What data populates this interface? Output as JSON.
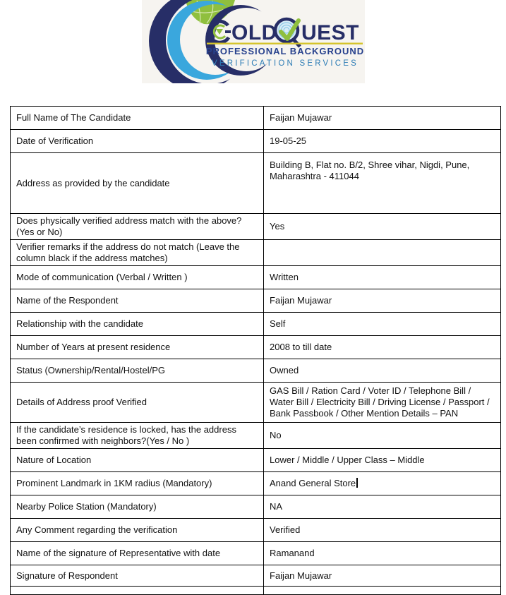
{
  "logo": {
    "title": "GOLDQUEST",
    "title_old": "OLD",
    "title_uest": "UEST",
    "subtitle_line1": "PROFESSIONAL BACKGROUND",
    "subtitle_line2": "VERIFICATION SERVICES",
    "colors": {
      "navy": "#272e67",
      "green": "#8fbf3e",
      "light_blue": "#3aa7dd",
      "yellow": "#d4c32b",
      "subtitle_navy": "#27418d",
      "subtitle_blue": "#2c7cb5",
      "background": "#f6f4f0"
    }
  },
  "table": {
    "rows": [
      {
        "label": "Full Name of The Candidate",
        "value": "Faijan Mujawar"
      },
      {
        "label": "Date of Verification",
        "value": "19-05-25"
      },
      {
        "label": "Address as provided by the candidate",
        "value": "Building B, Flat no. B/2, Shree vihar, Nigdi, Pune, Maharashtra - 411044"
      },
      {
        "label": "Does physically verified address match with the above? (Yes or No)",
        "value": "Yes"
      },
      {
        "label": "Verifier remarks if the address do not match (Leave the column black if the address matches)",
        "value": ""
      },
      {
        "label": "Mode of communication (Verbal / Written )",
        "value": "Written"
      },
      {
        "label": "Name of the Respondent",
        "value": "Faijan Mujawar"
      },
      {
        "label": "Relationship with the candidate",
        "value": "Self"
      },
      {
        "label": "Number of Years at present residence",
        "value": "2008 to till date"
      },
      {
        "label": "Status (Ownership/Rental/Hostel/PG",
        "value": "Owned"
      },
      {
        "label": "Details of Address proof Verified",
        "value": "GAS Bill / Ration Card / Voter ID / Telephone Bill / Water Bill / Electricity Bill / Driving License / Passport / Bank Passbook / Other Mention Details – PAN"
      },
      {
        "label": "If the candidate’s residence is locked, has the address been confirmed with neighbors?(Yes / No )",
        "value": "No"
      },
      {
        "label": "Nature of Location",
        "value": "Lower / Middle / Upper Class – Middle"
      },
      {
        "label": "Prominent Landmark in 1KM radius (Mandatory)",
        "value": "Anand General Store",
        "caret": true
      },
      {
        "label": "Nearby Police Station (Mandatory)",
        "value": "NA"
      },
      {
        "label": "Any Comment regarding the verification",
        "value": "Verified"
      },
      {
        "label": "Name of the signature of Representative with date",
        "value": "Ramanand"
      },
      {
        "label": "Signature of Respondent",
        "value": "Faijan Mujawar"
      }
    ]
  }
}
